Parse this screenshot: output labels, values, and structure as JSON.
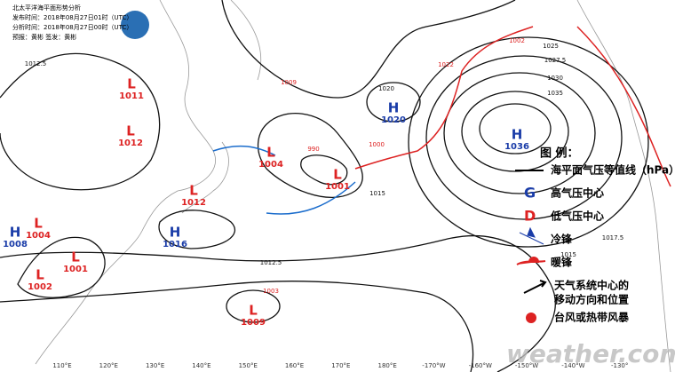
{
  "header": {
    "title": "北太平洋海平面形势分析",
    "issued": "发布时间：2018年08月27日01时（UTC）",
    "analysis": "分析时间：2018年08月27日00时（UTC）",
    "staff": "预报：黄彬  签发：黄彬"
  },
  "centers": [
    {
      "kind": "L",
      "value": "1011"
    },
    {
      "kind": "L",
      "value": "1012"
    },
    {
      "kind": "L",
      "value": "1004"
    },
    {
      "kind": "H",
      "value": "1008"
    },
    {
      "kind": "L",
      "value": "1001"
    },
    {
      "kind": "L",
      "value": "1002"
    },
    {
      "kind": "L",
      "value": "1012"
    },
    {
      "kind": "H",
      "value": "1016"
    },
    {
      "kind": "L",
      "value": "1004"
    },
    {
      "kind": "L",
      "value": "1001"
    },
    {
      "kind": "H",
      "value": "1020"
    },
    {
      "kind": "H",
      "value": "1036"
    },
    {
      "kind": "L",
      "value": "1009"
    }
  ],
  "isobar_labels": [
    "1012.5",
    "1015",
    "1020",
    "1025",
    "1027.5",
    "1030",
    "1035",
    "1017.5",
    "1012.5",
    "1015"
  ],
  "small_labels": [
    "1009",
    "1002",
    "1022",
    "1003",
    "990",
    "1000"
  ],
  "legend": {
    "title": "图 例：",
    "items": [
      "海平面气压等值线（hPa）",
      "高气压中心",
      "低气压中心",
      "冷锋",
      "暖锋",
      "天气系统中心的",
      "移动方向和位置",
      "台风或热带风暴"
    ]
  },
  "longitudes": [
    "110°E",
    "120°E",
    "130°E",
    "140°E",
    "150°E",
    "160°E",
    "170°E",
    "180°E",
    "-170°W",
    "-160°W",
    "-150°W",
    "-140°W",
    "-130°"
  ],
  "watermark": "weather.com.cn"
}
